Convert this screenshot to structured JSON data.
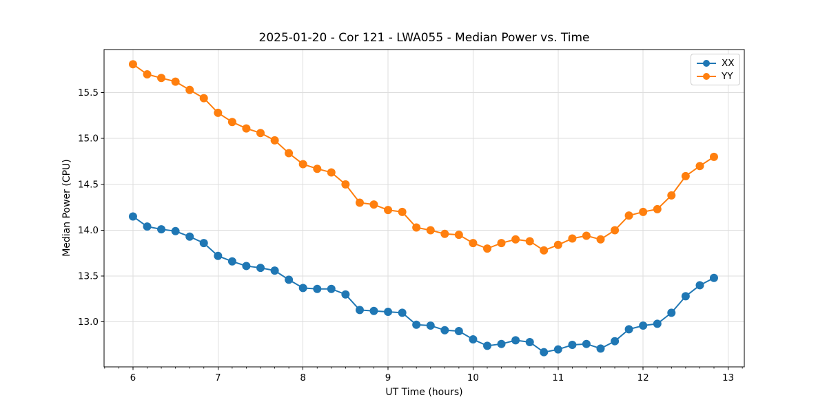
{
  "chart_data": {
    "type": "line",
    "title": "2025-01-20 - Cor 121 - LWA055 - Median Power vs. Time",
    "xlabel": "UT Time (hours)",
    "ylabel": "Median Power (CPU)",
    "xlim": [
      5.66,
      13.19
    ],
    "ylim": [
      12.51,
      15.97
    ],
    "x_ticks": [
      6,
      7,
      8,
      9,
      10,
      11,
      12,
      13
    ],
    "x_tick_labels": [
      "6",
      "7",
      "8",
      "9",
      "10",
      "11",
      "12",
      "13"
    ],
    "y_ticks": [
      13.0,
      13.5,
      14.0,
      14.5,
      15.0,
      15.5
    ],
    "y_tick_labels": [
      "13.0",
      "13.5",
      "14.0",
      "14.5",
      "15.0",
      "15.5"
    ],
    "x_minor_tick_step": 0.1666667,
    "grid": true,
    "grid_color": "#dddddd",
    "axis_color": "#000000",
    "legend_position": "upper-right",
    "x": [
      6.0,
      6.167,
      6.333,
      6.5,
      6.667,
      6.833,
      7.0,
      7.167,
      7.333,
      7.5,
      7.667,
      7.833,
      8.0,
      8.167,
      8.333,
      8.5,
      8.667,
      8.833,
      9.0,
      9.167,
      9.333,
      9.5,
      9.667,
      9.833,
      10.0,
      10.167,
      10.333,
      10.5,
      10.667,
      10.833,
      11.0,
      11.167,
      11.333,
      11.5,
      11.667,
      11.833,
      12.0,
      12.167,
      12.333,
      12.5,
      12.667,
      12.833
    ],
    "series": [
      {
        "name": "XX",
        "color": "#1f77b4",
        "marker": "circle",
        "values": [
          14.15,
          14.04,
          14.01,
          13.99,
          13.93,
          13.86,
          13.72,
          13.66,
          13.61,
          13.59,
          13.56,
          13.46,
          13.37,
          13.36,
          13.36,
          13.3,
          13.13,
          13.12,
          13.11,
          13.1,
          12.97,
          12.96,
          12.91,
          12.9,
          12.81,
          12.74,
          12.76,
          12.8,
          12.78,
          12.67,
          12.7,
          12.75,
          12.76,
          12.71,
          12.79,
          12.92,
          12.96,
          12.98,
          13.1,
          13.28,
          13.4,
          13.48
        ]
      },
      {
        "name": "YY",
        "color": "#ff7f0e",
        "marker": "circle",
        "values": [
          15.81,
          15.7,
          15.66,
          15.62,
          15.53,
          15.44,
          15.28,
          15.18,
          15.11,
          15.06,
          14.98,
          14.84,
          14.72,
          14.67,
          14.63,
          14.5,
          14.3,
          14.28,
          14.22,
          14.2,
          14.03,
          14.0,
          13.96,
          13.95,
          13.86,
          13.8,
          13.86,
          13.9,
          13.88,
          13.78,
          13.84,
          13.91,
          13.94,
          13.9,
          14.0,
          14.16,
          14.2,
          14.23,
          14.38,
          14.59,
          14.7,
          14.8
        ]
      }
    ]
  }
}
